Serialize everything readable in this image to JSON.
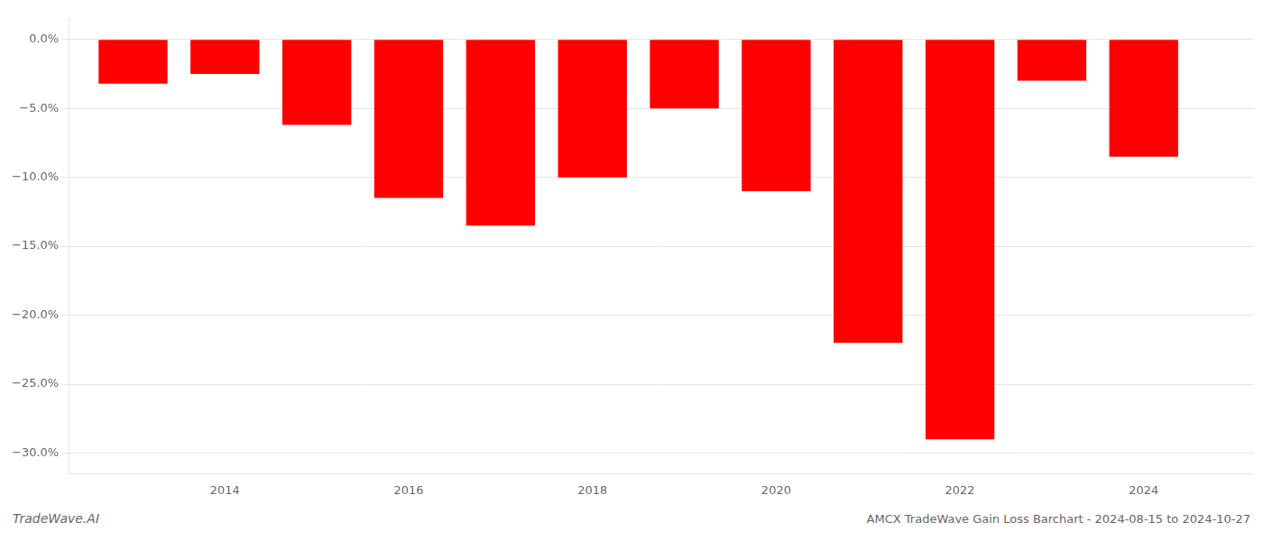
{
  "chart_data": {
    "type": "bar",
    "title": "AMCX TradeWave Gain Loss Barchart - 2024-08-15 to 2024-10-27",
    "annotations": [
      "TradeWave.AI"
    ],
    "x": [
      2013,
      2014,
      2015,
      2016,
      2017,
      2018,
      2019,
      2020,
      2021,
      2022,
      2023,
      2024
    ],
    "values": [
      -3.2,
      -2.5,
      -6.2,
      -11.5,
      -13.5,
      -10.0,
      -5.0,
      -11.0,
      -22.0,
      -29.0,
      -3.0,
      -8.5
    ],
    "color": "#ff0000",
    "xlim": [
      2012.3,
      2025.2
    ],
    "xticks": [
      2014,
      2016,
      2018,
      2020,
      2022,
      2024
    ],
    "ylim": [
      -31.5,
      1.5
    ],
    "yticks": [
      {
        "value": 0.0,
        "label": "0.0%"
      },
      {
        "value": -5.0,
        "label": "−5.0%"
      },
      {
        "value": -10.0,
        "label": "−10.0%"
      },
      {
        "value": -15.0,
        "label": "−15.0%"
      },
      {
        "value": -20.0,
        "label": "−20.0%"
      },
      {
        "value": -25.0,
        "label": "−25.0%"
      },
      {
        "value": -30.0,
        "label": "−30.0%"
      }
    ],
    "grid": true
  }
}
